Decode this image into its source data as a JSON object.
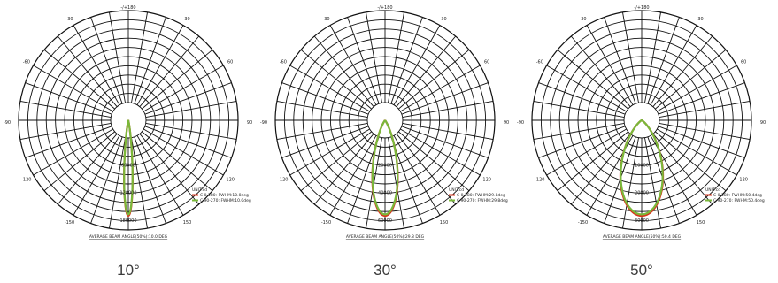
{
  "colors": {
    "grid": "#111111",
    "c0": "#d8351c",
    "c90": "#7ab83a",
    "label": "#3a3a3a"
  },
  "chart_data": [
    {
      "type": "polar",
      "caption": "10°",
      "top_label": "-/+180",
      "angle_labels": [
        "-150",
        "150",
        "-120",
        "120",
        "-90",
        "90",
        "-60",
        "60",
        "-30",
        "30"
      ],
      "unit": "UNIT:cd",
      "legend": [
        "C 0-180: FWHM:10.0deg",
        "C 90-270: FWHM:10.0deg"
      ],
      "radial_labels": [
        "60000",
        "120000",
        "180000"
      ],
      "footer": "AVERAGE BEAM ANGLE(50%):10.0 DEG",
      "series": [
        {
          "name": "C 0-180",
          "color": "#d8351c",
          "fwhm_deg": 10.0
        },
        {
          "name": "C 90-270",
          "color": "#7ab83a",
          "fwhm_deg": 10.0
        }
      ]
    },
    {
      "type": "polar",
      "caption": "30°",
      "top_label": "-/+180",
      "angle_labels": [
        "-150",
        "150",
        "-120",
        "120",
        "-90",
        "90",
        "-60",
        "60",
        "-30",
        "30"
      ],
      "unit": "UNIT:cd",
      "legend": [
        "C 0-180: FWHM:29.8deg",
        "C 90-270: FWHM:29.8deg"
      ],
      "radial_labels": [
        "20000",
        "40000",
        "60000"
      ],
      "footer": "AVERAGE BEAM ANGLE(50%):29.8 DEG",
      "series": [
        {
          "name": "C 0-180",
          "color": "#d8351c",
          "fwhm_deg": 29.8
        },
        {
          "name": "C 90-270",
          "color": "#7ab83a",
          "fwhm_deg": 29.8
        }
      ]
    },
    {
      "type": "polar",
      "caption": "50°",
      "top_label": "-/+180",
      "angle_labels": [
        "-150",
        "150",
        "-120",
        "120",
        "-90",
        "90",
        "-60",
        "60",
        "-30",
        "30"
      ],
      "unit": "UNIT:cd",
      "legend": [
        "C 0-180: FWHM:50.4deg",
        "C 90-270: FWHM:50.4deg"
      ],
      "radial_labels": [
        "10000",
        "20000",
        "30000"
      ],
      "footer": "AVERAGE BEAM ANGLE(50%):50.4 DEG",
      "series": [
        {
          "name": "C 0-180",
          "color": "#d8351c",
          "fwhm_deg": 50.4
        },
        {
          "name": "C 90-270",
          "color": "#7ab83a",
          "fwhm_deg": 50.4
        }
      ]
    }
  ]
}
